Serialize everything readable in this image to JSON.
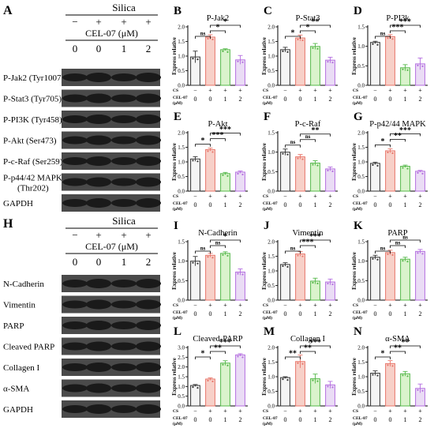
{
  "colors": {
    "bar_c1": "#f4f4f4",
    "edge_c1": "#333333",
    "bar_c2": "#f7d0c8",
    "edge_c2": "#e8766a",
    "bar_c3": "#daf3cc",
    "edge_c3": "#55b84a",
    "bar_c4": "#eadcf5",
    "edge_c4": "#b46ee0",
    "blot_band": "#1a1a1a",
    "blot_bg": "#4a4a4a",
    "red_star": "#e0223a"
  },
  "blot_top": {
    "letter": "A",
    "treatment_label": "Silica",
    "drug_label": "CEL-07 (μM)",
    "silica_signs": [
      "−",
      "+",
      "+",
      "+"
    ],
    "drug_doses": [
      "0",
      "0",
      "1",
      "2"
    ],
    "rows": [
      {
        "label": "P-Jak2 (Tyr1007)"
      },
      {
        "label": "P-Stat3 (Tyr705)"
      },
      {
        "label": "P-PI3K (Tyr458)"
      },
      {
        "label": "P-Akt (Ser473)"
      },
      {
        "label": "P-c-Raf (Ser259)"
      },
      {
        "label": "P-p44/42 MAPK",
        "label2": "(Thr202)"
      },
      {
        "label": "GAPDH"
      }
    ]
  },
  "blot_bottom": {
    "letter": "H",
    "treatment_label": "Silica",
    "drug_label": "CEL-07 (μM)",
    "silica_signs": [
      "−",
      "+",
      "+",
      "+"
    ],
    "drug_doses": [
      "0",
      "0",
      "1",
      "2"
    ],
    "rows": [
      {
        "label": "N-Cadherin"
      },
      {
        "label": "Vimentin"
      },
      {
        "label": "PARP"
      },
      {
        "label": "Cleaved PARP"
      },
      {
        "label": "Collagen I"
      },
      {
        "label": "α-SMA"
      },
      {
        "label": "GAPDH"
      }
    ]
  },
  "chart_data": [
    {
      "letter": "B",
      "type": "bar",
      "title": "P-Jak2",
      "ylabel": "Express relative",
      "ylim": [
        0,
        2.0
      ],
      "yticks": [
        "0.0",
        "0.5",
        "1.0",
        "1.5",
        "2.0"
      ],
      "values": [
        0.97,
        1.65,
        1.22,
        0.87
      ],
      "errors": [
        0.2,
        0.08,
        0.03,
        0.15
      ],
      "brackets": [
        [
          "ns",
          0,
          1
        ],
        [
          "*",
          1,
          2
        ],
        [
          "*",
          1,
          3
        ]
      ],
      "xrow_labels": [
        "CS",
        "CEL-07",
        "(μM)"
      ],
      "cs_signs": [
        "−",
        "+",
        "+",
        "+"
      ],
      "doses": [
        "0",
        "0",
        "1",
        "2"
      ]
    },
    {
      "letter": "C",
      "type": "bar",
      "title": "P-Stat3",
      "ylabel": "Express relative",
      "ylim": [
        0,
        2.0
      ],
      "yticks": [
        "0.0",
        "0.5",
        "1.0",
        "1.5",
        "2.0"
      ],
      "values": [
        1.22,
        1.62,
        1.33,
        0.86
      ],
      "errors": [
        0.08,
        0.1,
        0.1,
        0.1
      ],
      "brackets": [
        [
          "*",
          0,
          1
        ],
        [
          "*",
          1,
          2
        ],
        [
          "**",
          1,
          3
        ]
      ],
      "xrow_labels": [
        "CS",
        "CEL-07",
        "(μM)"
      ],
      "cs_signs": [
        "−",
        "+",
        "+",
        "+"
      ],
      "doses": [
        "0",
        "0",
        "1",
        "2"
      ]
    },
    {
      "letter": "D",
      "type": "bar",
      "title": "P-PI3k",
      "ylabel": "Express relative",
      "ylim": [
        0,
        1.5
      ],
      "yticks": [
        "0.0",
        "0.5",
        "1.0",
        "1.5"
      ],
      "values": [
        1.1,
        1.25,
        0.45,
        0.55
      ],
      "errors": [
        0.03,
        0.05,
        0.08,
        0.15
      ],
      "brackets": [
        [
          "ns",
          0,
          1
        ],
        [
          "***",
          1,
          2
        ],
        [
          "***",
          1,
          3
        ]
      ],
      "xrow_labels": [
        "CS",
        "CEL-07",
        "(μM)"
      ],
      "cs_signs": [
        "−",
        "+",
        "+",
        "+"
      ],
      "doses": [
        "0",
        "0",
        "1",
        "2"
      ]
    },
    {
      "letter": "E",
      "type": "bar",
      "title": "P-Akt",
      "ylabel": "Express relative",
      "ylim": [
        0,
        2.0
      ],
      "yticks": [
        "0.0",
        "0.5",
        "1.0",
        "1.5",
        "2.0"
      ],
      "values": [
        1.1,
        1.42,
        0.6,
        0.65
      ],
      "errors": [
        0.08,
        0.05,
        0.04,
        0.04
      ],
      "brackets": [
        [
          "*",
          0,
          1
        ],
        [
          "***",
          1,
          2
        ],
        [
          "***",
          1,
          3
        ]
      ],
      "xrow_labels": [
        "CS",
        "CEL-07",
        "(μM)"
      ],
      "cs_signs": [
        "−",
        "+",
        "+",
        "+"
      ],
      "doses": [
        "0",
        "0",
        "1",
        "2"
      ]
    },
    {
      "letter": "F",
      "type": "bar",
      "title": "P-c-Raf",
      "ylabel": "Express relative",
      "ylim": [
        0,
        1.5
      ],
      "yticks": [
        "0.0",
        "0.5",
        "1.0",
        "1.5"
      ],
      "values": [
        1.0,
        0.88,
        0.72,
        0.57
      ],
      "errors": [
        0.08,
        0.06,
        0.06,
        0.05
      ],
      "brackets": [
        [
          "ns",
          0,
          1
        ],
        [
          "ns",
          1,
          2
        ],
        [
          "**",
          1,
          3
        ]
      ],
      "xrow_labels": [
        "CS",
        "CEL-07",
        "(μM)"
      ],
      "cs_signs": [
        "−",
        "+",
        "+",
        "+"
      ],
      "doses": [
        "0",
        "0",
        "1",
        "2"
      ]
    },
    {
      "letter": "G",
      "type": "bar",
      "title": "P-p42/44 MAPK",
      "ylabel": "Express relative",
      "ylim": [
        0,
        2.0
      ],
      "yticks": [
        "0.0",
        "0.5",
        "1.0",
        "1.5",
        "2.0"
      ],
      "values": [
        0.95,
        1.38,
        0.85,
        0.68
      ],
      "errors": [
        0.04,
        0.07,
        0.04,
        0.03
      ],
      "brackets": [
        [
          "*",
          0,
          1
        ],
        [
          "**",
          1,
          2
        ],
        [
          "***",
          1,
          3
        ]
      ],
      "xrow_labels": [
        "CS",
        "CEL-07",
        "(μM)"
      ],
      "cs_signs": [
        "−",
        "+",
        "+",
        "+"
      ],
      "doses": [
        "0",
        "0",
        "1",
        "2"
      ]
    },
    {
      "letter": "I",
      "type": "bar",
      "title": "N-Cadherin",
      "ylabel": "Express relative",
      "ylim": [
        0,
        1.5
      ],
      "yticks": [
        "0.0",
        "0.5",
        "1.0",
        "1.5"
      ],
      "values": [
        1.0,
        1.15,
        1.2,
        0.72
      ],
      "errors": [
        0.12,
        0.05,
        0.04,
        0.08
      ],
      "brackets": [
        [
          "ns",
          0,
          1
        ],
        [
          "ns",
          1,
          2
        ],
        [
          "*",
          1,
          3
        ]
      ],
      "xrow_labels": [
        "CS",
        "CEL-07",
        "(μM)"
      ],
      "cs_signs": [
        "−",
        "+",
        "+",
        "+"
      ],
      "doses": [
        "0",
        "0",
        "1",
        "2"
      ]
    },
    {
      "letter": "J",
      "type": "bar",
      "title": "Vimentin",
      "ylabel": "Express relative",
      "ylim": [
        0,
        2.0
      ],
      "yticks": [
        "0.0",
        "0.5",
        "1.0",
        "1.5",
        "2.0"
      ],
      "values": [
        1.22,
        1.58,
        0.65,
        0.62
      ],
      "errors": [
        0.06,
        0.08,
        0.1,
        0.1
      ],
      "brackets": [
        [
          "ns",
          0,
          1
        ],
        [
          "***",
          1,
          2
        ],
        [
          "***",
          1,
          3
        ]
      ],
      "xrow_labels": [
        "CS",
        "CEL-07",
        "(μM)"
      ],
      "cs_signs": [
        "−",
        "+",
        "+",
        "+"
      ],
      "doses": [
        "0",
        "0",
        "1",
        "2"
      ]
    },
    {
      "letter": "K",
      "type": "bar",
      "title": "PARP",
      "ylabel": "Express relative",
      "ylim": [
        0,
        1.5
      ],
      "yticks": [
        "0.0",
        "0.5",
        "1.0",
        "1.5"
      ],
      "values": [
        1.1,
        1.22,
        1.05,
        1.25
      ],
      "errors": [
        0.05,
        0.06,
        0.05,
        0.05
      ],
      "brackets": [
        [
          "ns",
          0,
          1
        ],
        [
          "ns",
          1,
          2
        ],
        [
          "ns",
          1,
          3
        ]
      ],
      "xrow_labels": [
        "CS",
        "CEL-07",
        "(μM)"
      ],
      "cs_signs": [
        "−",
        "+",
        "+",
        "+"
      ],
      "doses": [
        "0",
        "0",
        "1",
        "2"
      ]
    },
    {
      "letter": "L",
      "type": "bar",
      "title": "Cleaved-PARP",
      "ylabel": "Express relative",
      "ylim": [
        0,
        3.0
      ],
      "yticks": [
        "0.0",
        "0.5",
        "1.0",
        "1.5",
        "2.0",
        "2.5",
        "3.0"
      ],
      "values": [
        1.05,
        1.38,
        2.2,
        2.62
      ],
      "errors": [
        0.05,
        0.06,
        0.12,
        0.06
      ],
      "brackets": [
        [
          "*",
          0,
          1
        ],
        [
          "**",
          1,
          2
        ],
        [
          "***",
          1,
          3
        ]
      ],
      "xrow_labels": [
        "CS",
        "CEL-07",
        "(μM)"
      ],
      "cs_signs": [
        "−",
        "+",
        "+",
        "+"
      ],
      "doses": [
        "0",
        "0",
        "1",
        "2"
      ]
    },
    {
      "letter": "M",
      "type": "bar",
      "title": "Collagen I",
      "ylabel": "Express relative",
      "ylim": [
        0,
        2.0
      ],
      "yticks": [
        "0.0",
        "0.5",
        "1.0",
        "1.5",
        "2.0"
      ],
      "values": [
        0.97,
        1.52,
        0.93,
        0.72
      ],
      "errors": [
        0.03,
        0.22,
        0.16,
        0.12
      ],
      "brackets": [
        [
          "**",
          0,
          1
        ],
        [
          "**",
          1,
          2
        ],
        [
          "***",
          1,
          3
        ]
      ],
      "xrow_labels": [
        "CS",
        "CEL-07",
        "(μM)"
      ],
      "cs_signs": [
        "−",
        "+",
        "+",
        "+"
      ],
      "doses": [
        "0",
        "0",
        "1",
        "2"
      ]
    },
    {
      "letter": "N",
      "type": "bar",
      "title": "α-SMA",
      "ylabel": "Express relative",
      "ylim": [
        0,
        2.0
      ],
      "yticks": [
        "0.0",
        "0.5",
        "1.0",
        "1.5",
        "2.0"
      ],
      "values": [
        1.12,
        1.45,
        1.1,
        0.6
      ],
      "errors": [
        0.08,
        0.1,
        0.08,
        0.15
      ],
      "brackets": [
        [
          "*",
          0,
          1
        ],
        [
          "**",
          1,
          2
        ],
        [
          "**",
          1,
          3
        ]
      ],
      "xrow_labels": [
        "CS",
        "CEL-07",
        "(μM)"
      ],
      "cs_signs": [
        "−",
        "+",
        "+",
        "+"
      ],
      "doses": [
        "0",
        "0",
        "1",
        "2"
      ]
    }
  ]
}
